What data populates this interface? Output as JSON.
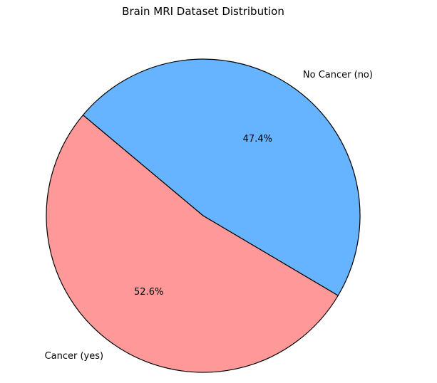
{
  "chart_data": {
    "type": "pie",
    "title": "Brain MRI Dataset Distribution",
    "slices": [
      {
        "label": "Cancer (yes)",
        "value": 52.6,
        "pct_label": "52.6%",
        "color": "#ff9999"
      },
      {
        "label": "No Cancer (no)",
        "value": 47.4,
        "pct_label": "47.4%",
        "color": "#66b3ff"
      }
    ],
    "start_angle_deg": 140,
    "edge_color": "#000000"
  }
}
